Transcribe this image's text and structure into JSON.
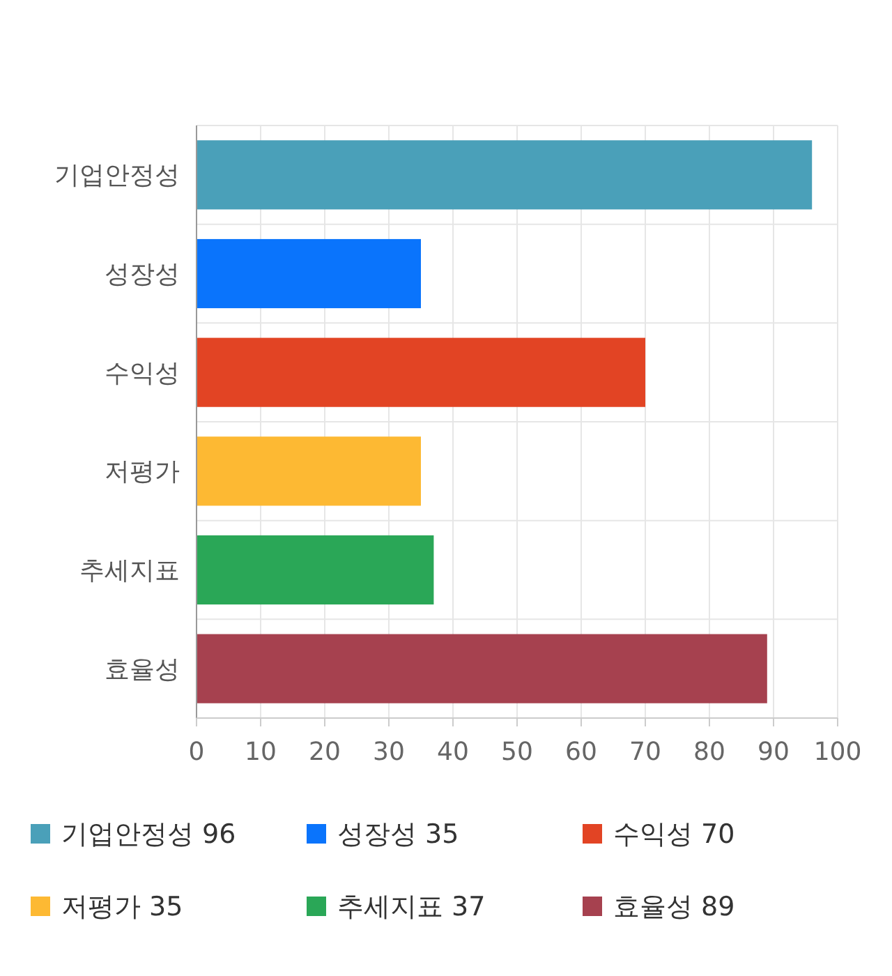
{
  "chart_data": {
    "type": "bar",
    "orientation": "horizontal",
    "stacked": true,
    "categories": [
      "기업안정성",
      "성장성",
      "수익성",
      "저평가",
      "추세지표",
      "효율성"
    ],
    "series": [
      {
        "name": "기업안정성 96",
        "color": "#4aa0b9",
        "values": [
          96,
          null,
          null,
          null,
          null,
          null
        ]
      },
      {
        "name": "성장성 35",
        "color": "#0a74fc",
        "values": [
          null,
          35,
          null,
          null,
          null,
          null
        ]
      },
      {
        "name": "수익성 70",
        "color": "#e24424",
        "values": [
          null,
          null,
          70,
          null,
          null,
          null
        ]
      },
      {
        "name": "저평가 35",
        "color": "#fdb933",
        "values": [
          null,
          null,
          null,
          35,
          null,
          null
        ]
      },
      {
        "name": "추세지표 37",
        "color": "#2aa757",
        "values": [
          null,
          null,
          null,
          null,
          37,
          null
        ]
      },
      {
        "name": "효율성 89",
        "color": "#a6414f",
        "values": [
          null,
          null,
          null,
          null,
          null,
          89
        ]
      }
    ],
    "xlim": [
      0,
      100
    ],
    "xticks": [
      0,
      10,
      20,
      30,
      40,
      50,
      60,
      70,
      80,
      90,
      100
    ],
    "grid": true,
    "legend": "bottom"
  }
}
